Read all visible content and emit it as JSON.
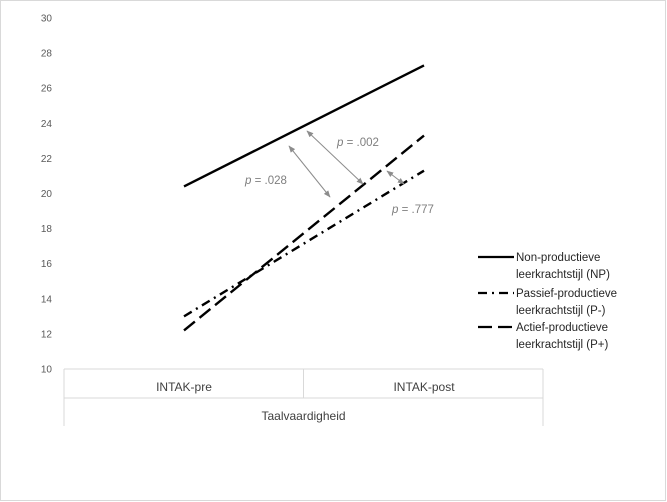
{
  "chart_data": {
    "type": "line",
    "categories": [
      "INTAK-pre",
      "INTAK-post"
    ],
    "group_label": "Taalvaardigheid",
    "ylim": [
      10,
      30
    ],
    "yticks": [
      10,
      12,
      14,
      16,
      18,
      20,
      22,
      24,
      26,
      28,
      30
    ],
    "grid": false,
    "legend_position": "right",
    "series": [
      {
        "name": "Non-productieve leerkrachtstijl (NP)",
        "name_lines": [
          "Non-productieve",
          "leerkrachtstijl (NP)"
        ],
        "values": [
          20.4,
          27.3
        ],
        "style": "solid",
        "color": "#000000"
      },
      {
        "name": "Passief-productieve leerkrachtstijl (P-)",
        "name_lines": [
          "Passief-productieve",
          "leerkrachtstijl (P-)"
        ],
        "values": [
          13.0,
          21.3
        ],
        "style": "dash-dot",
        "color": "#000000"
      },
      {
        "name": "Actief-productieve leerkrachtstijl (P+)",
        "name_lines": [
          "Actief-productieve",
          "leerkrachtstijl (P+)"
        ],
        "values": [
          12.2,
          23.3
        ],
        "style": "long-dash",
        "color": "#000000"
      }
    ],
    "annotations": [
      {
        "text": "p = .028",
        "p_value": 0.028
      },
      {
        "text": "p = .002",
        "p_value": 0.002
      },
      {
        "text": "p = .777",
        "p_value": 0.777
      }
    ]
  }
}
